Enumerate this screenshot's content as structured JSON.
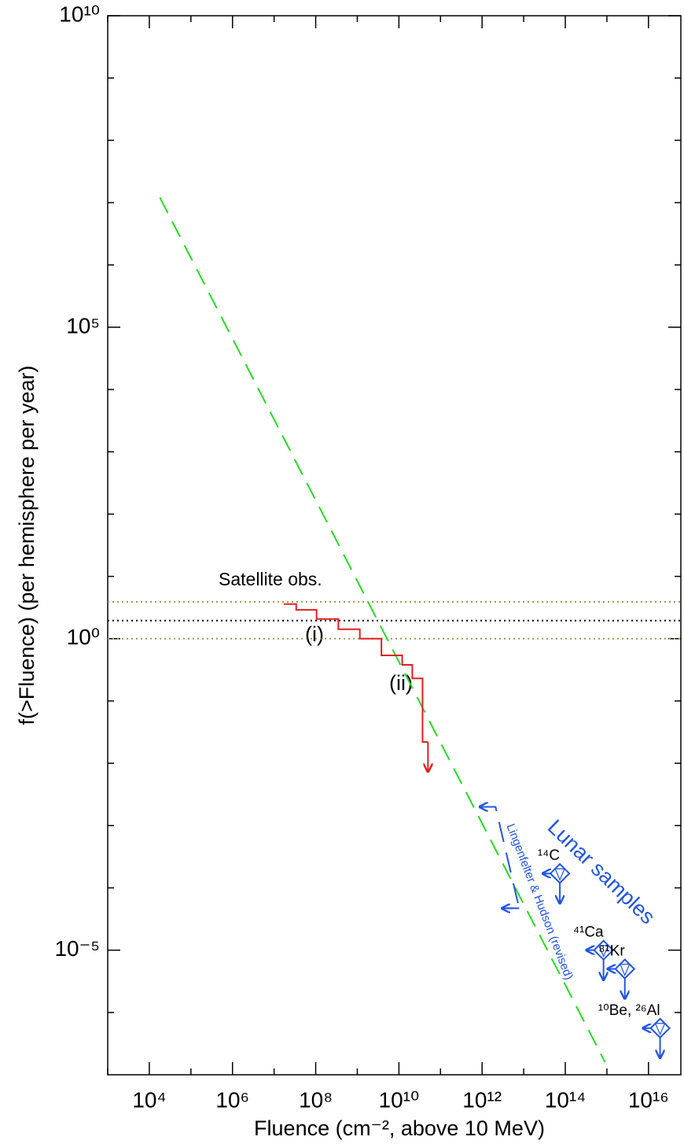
{
  "chart_data": {
    "type": "line",
    "x_label": "Fluence (cm⁻², above 10 MeV)",
    "y_label": "f(>Fluence) (per hemisphere per year)",
    "log_x": true,
    "log_y": true,
    "xlim": [
      1000.0,
      6e+16
    ],
    "ylim": [
      1e-07,
      10000000000.0
    ],
    "xticks": [
      {
        "value": 10000.0,
        "label": "10⁴"
      },
      {
        "value": 1000000.0,
        "label": "10⁶"
      },
      {
        "value": 100000000.0,
        "label": "10⁸"
      },
      {
        "value": 10000000000.0,
        "label": "10¹⁰"
      },
      {
        "value": 1000000000000.0,
        "label": "10¹²"
      },
      {
        "value": 100000000000000.0,
        "label": "10¹⁴"
      },
      {
        "value": 1e+16,
        "label": "10¹⁶"
      }
    ],
    "x_minor_ticks": [
      1000.0,
      100000.0,
      10000000.0,
      1000000000.0,
      100000000000.0,
      10000000000000.0,
      1000000000000000.0
    ],
    "yticks": [
      {
        "value": 10000000000.0,
        "label": "10¹⁰"
      },
      {
        "value": 100000.0,
        "label": "10⁵"
      },
      {
        "value": 1,
        "label": "10⁰"
      },
      {
        "value": 1e-05,
        "label": "10⁻⁵"
      }
    ],
    "y_minor_ticks": [
      1000000000.0,
      100000000.0,
      10000000.0,
      1000000.0,
      10000.0,
      1000.0,
      100.0,
      10,
      0.1,
      0.01,
      0.001,
      0.0001,
      1e-06
    ],
    "hlines": [
      {
        "value": 3.9,
        "color": "#9a9a5a"
      },
      {
        "value": 1.95,
        "color": "#000000"
      },
      {
        "value": 1,
        "color": "#9a9a5a"
      }
    ],
    "series": [
      {
        "style": "dashed",
        "color": "#22dd22",
        "x": [
          18000.0,
          900000000000000.0
        ],
        "values": [
          12000000.0,
          1.6e-07
        ]
      },
      {
        "style": "step",
        "color": "#e02020",
        "x": [
          17000000.0,
          34000000.0,
          105000000.0,
          350000000.0,
          1150000000.0,
          3800000000.0,
          12000000000.0,
          21000000000.0,
          37000000000.0,
          50000000000.0
        ],
        "values": [
          3.6,
          2.9,
          2.07,
          1.42,
          1.0,
          0.54,
          0.38,
          0.23,
          0.022,
          0.022
        ],
        "limit_arrow": "down"
      },
      {
        "style": "bracket",
        "color": "#2255dd",
        "x": [
          870000000000.0,
          2100000000000.0,
          7800000000000.0,
          3000000000000.0
        ],
        "values": [
          0.002,
          0.002,
          4.7e-05,
          4.7e-05
        ]
      }
    ],
    "points": {
      "color": "#2255dd",
      "labels": [
        "¹⁴C",
        "⁴¹Ca",
        "⁸¹Kr",
        "¹⁰Be, ²⁶Al"
      ],
      "x": [
        74000000000000.0,
        830000000000000.0,
        2700000000000000.0,
        1.9e+16
      ],
      "values": [
        0.00017,
        1e-05,
        5e-06,
        5.6e-07
      ]
    },
    "annotations": [
      "Satellite obs.",
      "(i)",
      "(ii)",
      "Lingenfelter & Hudson (revised)",
      "Lunar samples"
    ]
  }
}
